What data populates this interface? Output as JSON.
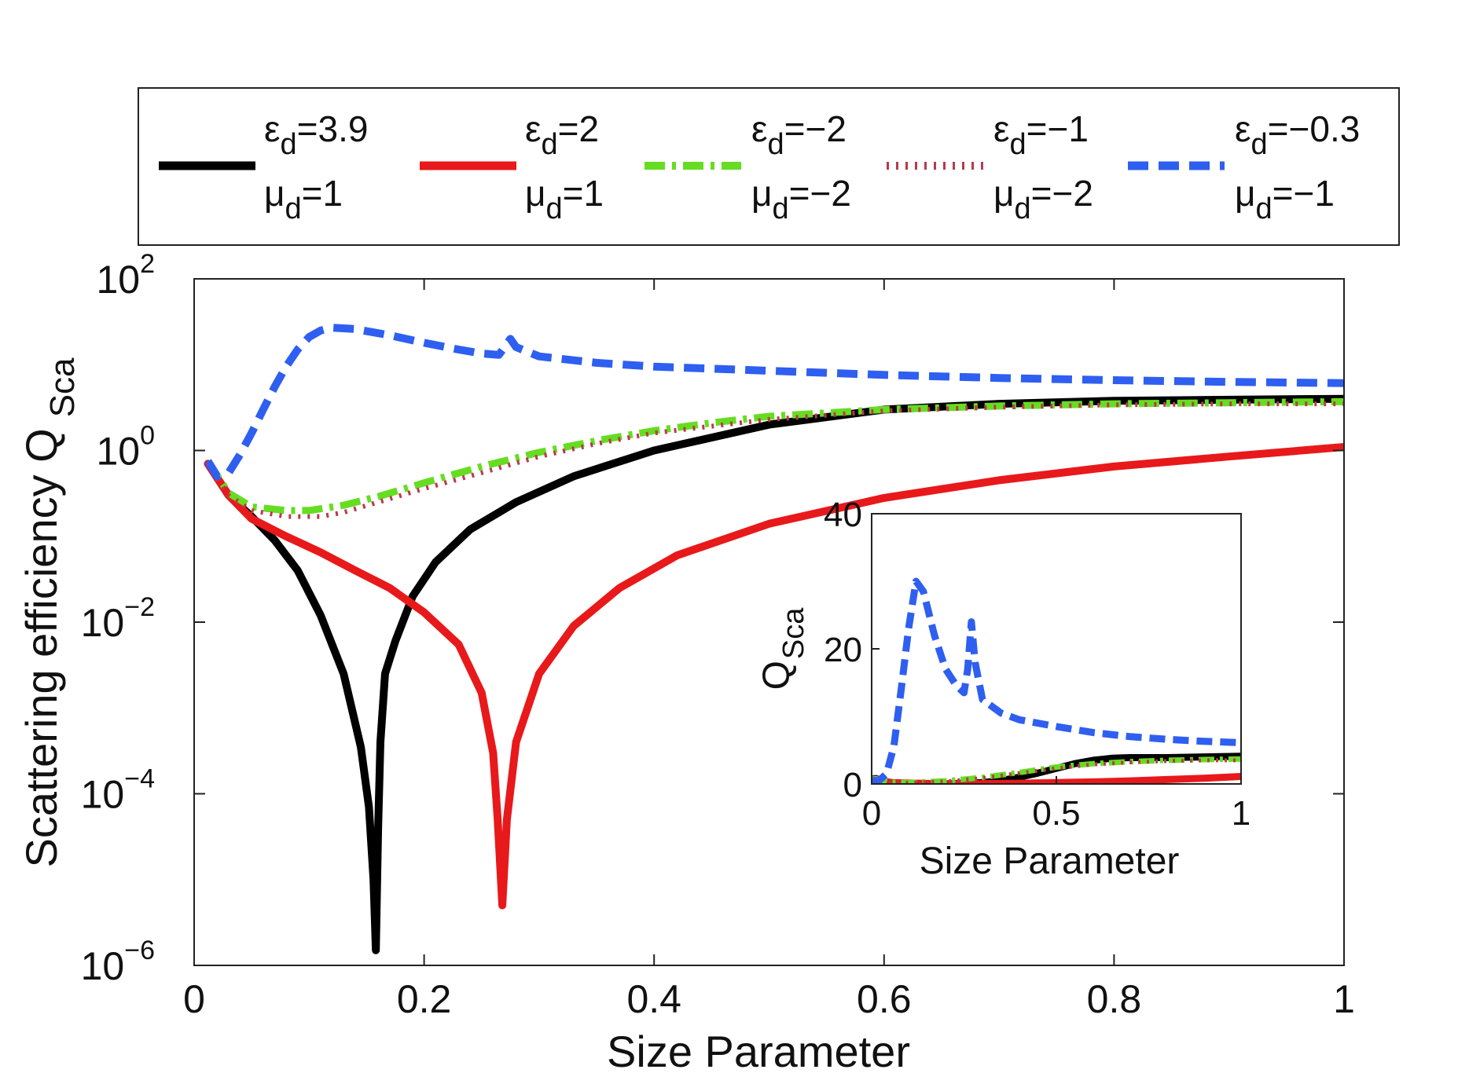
{
  "chart_data": [
    {
      "type": "line",
      "title": "",
      "xlabel": "Size Parameter",
      "ylabel": "Scattering efficiency Q",
      "ylabel_sub": "Sca",
      "xscale": "linear",
      "yscale": "log",
      "xlim": [
        0,
        1
      ],
      "ylim_exp": [
        -6,
        2
      ],
      "xticks": [
        "0",
        "0.2",
        "0.4",
        "0.6",
        "0.8",
        "1"
      ],
      "ytick_base": "10",
      "yticks_exp": [
        "−6",
        "−4",
        "−2",
        "0",
        "2"
      ],
      "legend_position": "top, outside, 5 columns",
      "series": [
        {
          "name": "eps3.9_mu1",
          "legend_line1": "ε",
          "legend_sub1": "d",
          "legend_val1": "=3.9",
          "legend_line2": "μ",
          "legend_sub2": "d",
          "legend_val2": "=1",
          "color": "#000000",
          "style": "solid",
          "x": [
            0.012,
            0.03,
            0.05,
            0.07,
            0.09,
            0.11,
            0.13,
            0.145,
            0.152,
            0.156,
            0.158,
            0.16,
            0.162,
            0.166,
            0.175,
            0.19,
            0.21,
            0.24,
            0.28,
            0.33,
            0.4,
            0.5,
            0.6,
            0.7,
            0.8,
            0.9,
            1.0
          ],
          "y": [
            0.7,
            0.3,
            0.17,
            0.09,
            0.04,
            0.012,
            0.0025,
            0.00035,
            7e-05,
            1e-05,
            1.5e-06,
            4e-05,
            0.0004,
            0.0025,
            0.006,
            0.02,
            0.05,
            0.12,
            0.25,
            0.5,
            1.0,
            2.0,
            3.0,
            3.5,
            3.8,
            3.9,
            4.0
          ]
        },
        {
          "name": "eps2_mu1",
          "legend_line1": "ε",
          "legend_sub1": "d",
          "legend_val1": "=2",
          "legend_line2": "μ",
          "legend_sub2": "d",
          "legend_val2": "=1",
          "color": "#e8191b",
          "style": "solid",
          "x": [
            0.012,
            0.03,
            0.05,
            0.08,
            0.11,
            0.14,
            0.17,
            0.2,
            0.23,
            0.25,
            0.26,
            0.264,
            0.268,
            0.272,
            0.28,
            0.3,
            0.33,
            0.37,
            0.42,
            0.5,
            0.6,
            0.7,
            0.8,
            0.9,
            1.0
          ],
          "y": [
            0.7,
            0.3,
            0.16,
            0.1,
            0.065,
            0.04,
            0.025,
            0.013,
            0.0055,
            0.0015,
            0.0003,
            5e-05,
            5e-06,
            5e-05,
            0.0004,
            0.0025,
            0.009,
            0.025,
            0.06,
            0.14,
            0.28,
            0.45,
            0.65,
            0.85,
            1.1
          ]
        },
        {
          "name": "eps-2_mu-2",
          "legend_line1": "ε",
          "legend_sub1": "d",
          "legend_val1": "=−2",
          "legend_line2": "μ",
          "legend_sub2": "d",
          "legend_val2": "=−2",
          "color": "#66dd22",
          "style": "dashdot",
          "x": [
            0.012,
            0.03,
            0.05,
            0.08,
            0.1,
            0.13,
            0.16,
            0.2,
            0.25,
            0.3,
            0.35,
            0.4,
            0.45,
            0.5,
            0.6,
            0.7,
            0.8,
            0.9,
            1.0
          ],
          "y": [
            0.75,
            0.32,
            0.22,
            0.2,
            0.2,
            0.23,
            0.29,
            0.42,
            0.65,
            0.95,
            1.3,
            1.7,
            2.1,
            2.5,
            3.0,
            3.3,
            3.5,
            3.6,
            3.7
          ]
        },
        {
          "name": "eps-1_mu-2",
          "legend_line1": "ε",
          "legend_sub1": "d",
          "legend_val1": "=−1",
          "legend_line2": "μ",
          "legend_sub2": "d",
          "legend_val2": "=−2",
          "color": "#b83a4b",
          "style": "dotted",
          "x": [
            0.012,
            0.03,
            0.05,
            0.08,
            0.11,
            0.13,
            0.16,
            0.2,
            0.25,
            0.3,
            0.35,
            0.4,
            0.5,
            0.6,
            0.7,
            0.8,
            0.9,
            1.0
          ],
          "y": [
            0.72,
            0.3,
            0.2,
            0.17,
            0.17,
            0.19,
            0.25,
            0.36,
            0.55,
            0.85,
            1.2,
            1.6,
            2.3,
            2.9,
            3.2,
            3.4,
            3.5,
            3.5
          ]
        },
        {
          "name": "eps-0.3_mu-1",
          "legend_line1": "ε",
          "legend_sub1": "d",
          "legend_val1": "=−0.3",
          "legend_line2": "μ",
          "legend_sub2": "d",
          "legend_val2": "=−1",
          "color": "#2f5ff0",
          "style": "dashed",
          "x": [
            0.012,
            0.02,
            0.03,
            0.04,
            0.05,
            0.06,
            0.07,
            0.08,
            0.09,
            0.1,
            0.11,
            0.12,
            0.14,
            0.17,
            0.2,
            0.23,
            0.25,
            0.265,
            0.27,
            0.275,
            0.28,
            0.3,
            0.35,
            0.4,
            0.5,
            0.6,
            0.7,
            0.8,
            0.9,
            1.0
          ],
          "y": [
            0.75,
            0.5,
            0.55,
            0.9,
            1.6,
            3.0,
            5.5,
            9.5,
            15,
            21,
            25,
            27,
            26,
            22,
            18,
            15,
            13.5,
            13,
            16,
            20,
            16,
            12.5,
            10.5,
            9.5,
            8.5,
            7.6,
            7.0,
            6.6,
            6.3,
            6.1
          ]
        }
      ]
    },
    {
      "type": "line",
      "title": "",
      "xlabel": "Size Parameter",
      "ylabel": "Q",
      "ylabel_sub": "Sca",
      "xscale": "linear",
      "yscale": "linear",
      "xlim": [
        0,
        1
      ],
      "ylim": [
        0,
        40
      ],
      "xticks": [
        "0",
        "0.5",
        "1"
      ],
      "yticks": [
        "0",
        "20",
        "40"
      ],
      "series": [
        {
          "name": "eps3.9_mu1",
          "color": "#000000",
          "style": "solid",
          "x": [
            0.0,
            0.012,
            0.03,
            0.06,
            0.1,
            0.2,
            0.3,
            0.35,
            0.4,
            0.45,
            0.5,
            0.55,
            0.6,
            0.65,
            0.7,
            0.8,
            0.9,
            1.0
          ],
          "y": [
            0.7,
            0.8,
            0.4,
            0.15,
            0.05,
            0.01,
            0.2,
            0.5,
            1.0,
            1.6,
            2.3,
            3.0,
            3.5,
            3.8,
            3.9,
            3.9,
            4.0,
            4.1
          ]
        },
        {
          "name": "eps2_mu1",
          "color": "#e8191b",
          "style": "solid",
          "x": [
            0.0,
            0.012,
            0.05,
            0.2,
            0.3,
            0.4,
            0.5,
            0.6,
            0.7,
            0.8,
            0.9,
            1.0
          ],
          "y": [
            0.6,
            0.7,
            0.2,
            0.01,
            0.05,
            0.1,
            0.2,
            0.3,
            0.45,
            0.65,
            0.85,
            1.1
          ]
        },
        {
          "name": "eps-2_mu-2",
          "color": "#66dd22",
          "style": "dashdot",
          "x": [
            0.0,
            0.012,
            0.05,
            0.1,
            0.2,
            0.3,
            0.4,
            0.5,
            0.6,
            0.7,
            0.8,
            0.9,
            1.0
          ],
          "y": [
            0.7,
            0.75,
            0.25,
            0.2,
            0.45,
            0.95,
            1.7,
            2.5,
            3.0,
            3.3,
            3.5,
            3.6,
            3.7
          ]
        },
        {
          "name": "eps-1_mu-2",
          "color": "#b83a4b",
          "style": "dotted",
          "x": [
            0.0,
            0.012,
            0.05,
            0.1,
            0.2,
            0.3,
            0.4,
            0.5,
            0.6,
            0.7,
            0.8,
            0.9,
            1.0
          ],
          "y": [
            0.7,
            0.72,
            0.2,
            0.17,
            0.36,
            0.85,
            1.6,
            2.3,
            2.9,
            3.2,
            3.4,
            3.5,
            3.5
          ]
        },
        {
          "name": "eps-0.3_mu-1",
          "color": "#2f5ff0",
          "style": "dashed",
          "x": [
            0.0,
            0.02,
            0.04,
            0.06,
            0.08,
            0.1,
            0.12,
            0.14,
            0.17,
            0.2,
            0.23,
            0.25,
            0.26,
            0.27,
            0.28,
            0.3,
            0.35,
            0.4,
            0.5,
            0.6,
            0.7,
            0.8,
            0.9,
            1.0
          ],
          "y": [
            0.5,
            0.5,
            1.5,
            5.5,
            14,
            23,
            30,
            28.5,
            22,
            17,
            14.5,
            13.5,
            17,
            24,
            18,
            12.5,
            10.5,
            9.5,
            8.5,
            7.6,
            7.0,
            6.6,
            6.3,
            6.1
          ]
        }
      ]
    }
  ]
}
